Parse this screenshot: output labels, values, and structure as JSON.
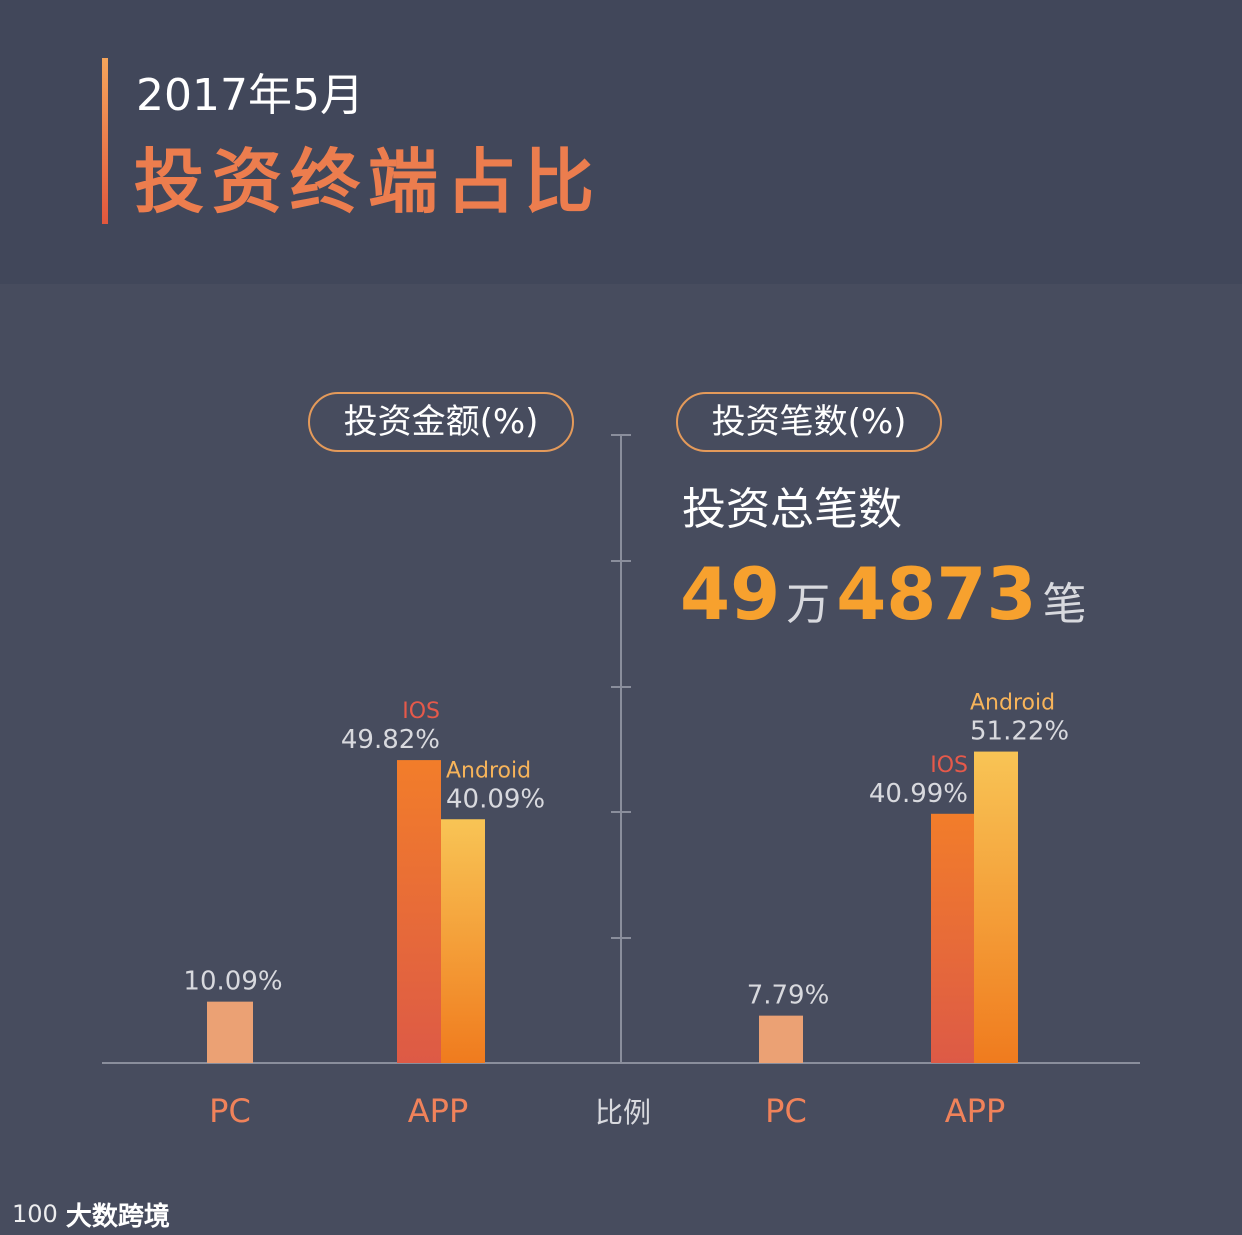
{
  "header": {
    "date": "2017年5月",
    "title": "投资终端占比"
  },
  "chart_data": [
    {
      "type": "bar",
      "title": "投资金额(%)",
      "categories": [
        "PC",
        "APP"
      ],
      "series": [
        {
          "name": "",
          "category": "PC",
          "value": 10.09,
          "label": "10.09%",
          "color": "#eba174"
        },
        {
          "name": "IOS",
          "category": "APP",
          "value": 49.82,
          "label": "49.82%",
          "color_top": "#f27d2a",
          "color_bottom": "#dd5a46"
        },
        {
          "name": "Android",
          "category": "APP",
          "value": 40.09,
          "label": "40.09%",
          "color_top": "#f8c455",
          "color_bottom": "#f07b1e"
        }
      ]
    },
    {
      "type": "bar",
      "title": "投资笔数(%)",
      "categories": [
        "PC",
        "APP"
      ],
      "series": [
        {
          "name": "",
          "category": "PC",
          "value": 7.79,
          "label": "7.79%",
          "color": "#eba174"
        },
        {
          "name": "IOS",
          "category": "APP",
          "value": 40.99,
          "label": "40.99%",
          "color_top": "#f27d2a",
          "color_bottom": "#dd5a46"
        },
        {
          "name": "Android",
          "category": "APP",
          "value": 51.22,
          "label": "51.22%",
          "color_top": "#f8c455",
          "color_bottom": "#f07b1e"
        }
      ]
    }
  ],
  "axis": {
    "center_label": "比例",
    "x_labels_left": [
      "PC",
      "APP"
    ],
    "x_labels_right": [
      "PC",
      "APP"
    ]
  },
  "total": {
    "label": "投资总笔数",
    "wan_number": "49",
    "wan_unit": "万",
    "rest_number": "4873",
    "count_unit": "笔"
  },
  "watermark": {
    "logo": "100",
    "text": "大数跨境"
  },
  "colors": {
    "background": "#474c5e",
    "header_bg": "#41475a",
    "accent_orange": "#ec7d4e",
    "ios_label": "#e6594a",
    "android_label": "#f7b45a",
    "value_label": "#d8d9de",
    "axis_label": "#f0825a",
    "axis_line": "#8a8e9c"
  }
}
